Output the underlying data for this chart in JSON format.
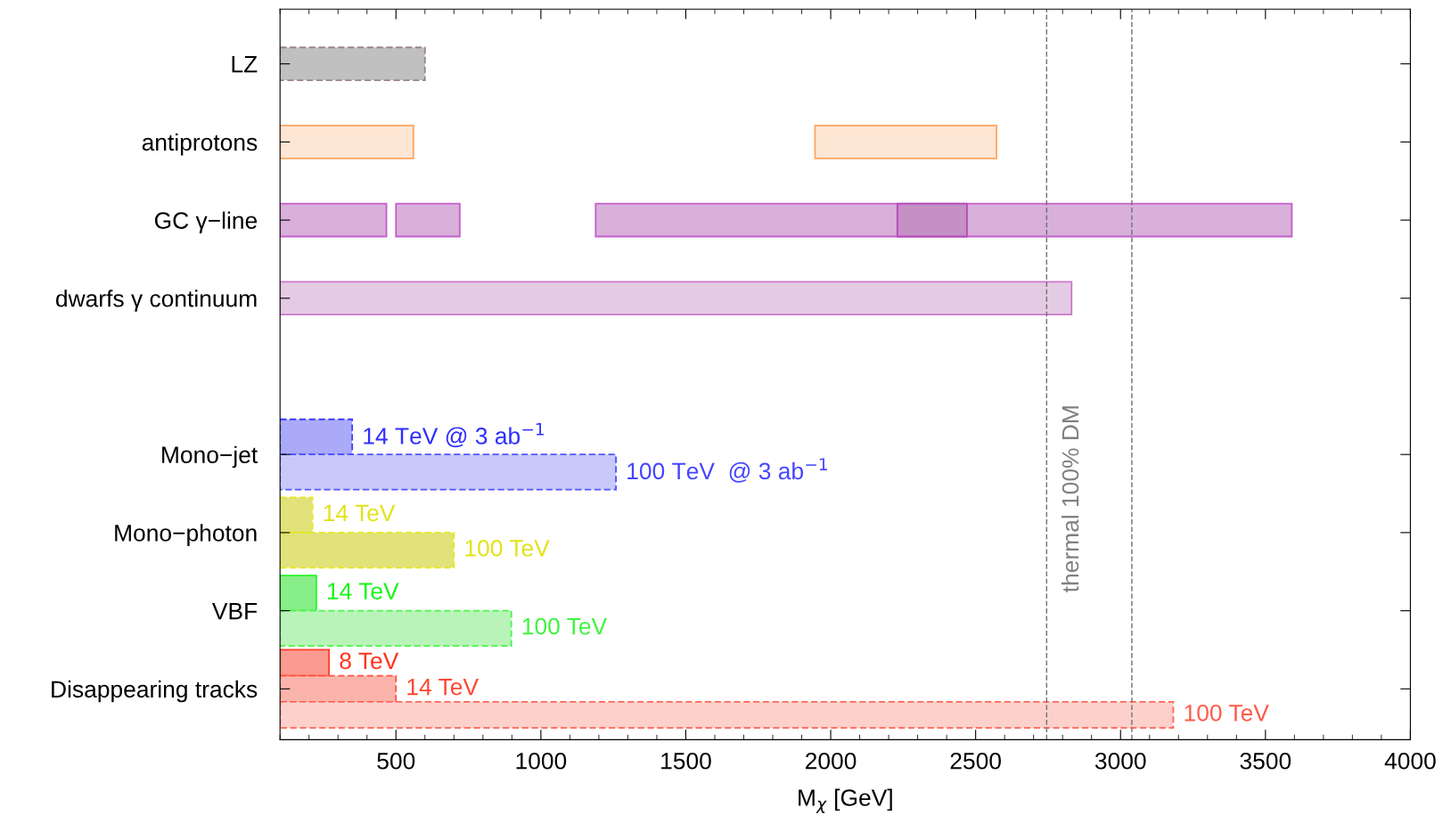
{
  "chart_data": {
    "type": "bar",
    "orientation": "horizontal",
    "xlabel": "M$_{χ}$ [GeV]",
    "categories": [
      "LZ",
      "antiprotons",
      "GC γ−line",
      "dwarfs γ continuum",
      null,
      "Mono−jet",
      "Mono−photon",
      "VBF",
      "Disappearing tracks"
    ],
    "xlim": [
      100,
      4000
    ],
    "xticks": [
      500,
      1000,
      1500,
      2000,
      2500,
      3000,
      3500,
      4000
    ],
    "series": [
      {
        "color": "#c0c0c0",
        "line_style": "dashed",
        "values": [
          500,
          null,
          null,
          null,
          null,
          null,
          null,
          null,
          null
        ],
        "base": [
          100,
          null,
          null,
          null,
          null,
          null,
          null,
          null,
          null
        ]
      },
      {
        "color": "#fde6d4",
        "line_style": "solid",
        "values": [
          null,
          460,
          null,
          null,
          null,
          null,
          null,
          null,
          null
        ],
        "base": [
          null,
          100,
          null,
          null,
          null,
          null,
          null,
          null,
          null
        ]
      },
      {
        "color": "#fde6d4",
        "line_style": "solid",
        "values": [
          null,
          626,
          null,
          null,
          null,
          null,
          null,
          null,
          null
        ],
        "base": [
          null,
          1946,
          null,
          null,
          null,
          null,
          null,
          null,
          null
        ]
      },
      {
        "color": "#d8b0da",
        "line_style": "solid",
        "values": [
          null,
          null,
          367,
          null,
          null,
          null,
          null,
          null,
          null
        ],
        "base": [
          null,
          null,
          100,
          null,
          null,
          null,
          null,
          null,
          null
        ]
      },
      {
        "color": "#d8b0da",
        "line_style": "solid",
        "values": [
          null,
          null,
          220,
          null,
          null,
          null,
          null,
          null,
          null
        ],
        "base": [
          null,
          null,
          500,
          null,
          null,
          null,
          null,
          null,
          null
        ]
      },
      {
        "color": "#d8b0da",
        "line_style": "solid",
        "values": [
          null,
          null,
          2402,
          null,
          null,
          null,
          null,
          null,
          null
        ],
        "base": [
          null,
          null,
          1189,
          null,
          null,
          null,
          null,
          null,
          null
        ]
      },
      {
        "color": "#c490c6",
        "line_style": "solid",
        "values": [
          null,
          null,
          240,
          null,
          null,
          null,
          null,
          null,
          null
        ],
        "base": [
          null,
          null,
          2230,
          null,
          null,
          null,
          null,
          null,
          null
        ]
      },
      {
        "color": "#e4cbe4",
        "line_style": "solid",
        "values": [
          null,
          null,
          null,
          2731,
          null,
          null,
          null,
          null,
          null
        ],
        "base": [
          null,
          null,
          null,
          100,
          null,
          null,
          null,
          null,
          null
        ]
      },
      {
        "name": "14 TeV @ 3 ab$^{−1}$",
        "color": "#aaaaf8",
        "line_style": "dashed",
        "values": [
          null,
          null,
          null,
          null,
          null,
          249,
          null,
          null,
          null
        ],
        "base": [
          null,
          null,
          null,
          null,
          null,
          100,
          null,
          null,
          null
        ]
      },
      {
        "name": "100 TeV  @ 3 ab$^{−1}$",
        "color": "#c8c8fa",
        "line_style": "dashed",
        "values": [
          null,
          null,
          null,
          null,
          null,
          1159,
          null,
          null,
          null
        ],
        "base": [
          null,
          null,
          null,
          null,
          null,
          100,
          null,
          null,
          null
        ]
      },
      {
        "name": "14 TeV",
        "color": "#e2e27a",
        "line_style": "dashed",
        "values": [
          null,
          null,
          null,
          null,
          null,
          null,
          112,
          null,
          null
        ],
        "base": [
          null,
          null,
          null,
          null,
          null,
          null,
          100,
          null,
          null
        ]
      },
      {
        "name": "100 TeV",
        "color": "#e2e27a",
        "line_style": "dashed",
        "values": [
          null,
          null,
          null,
          null,
          null,
          null,
          600,
          null,
          null
        ],
        "base": [
          null,
          null,
          null,
          null,
          null,
          null,
          100,
          null,
          null
        ]
      },
      {
        "name": "14 TeV",
        "color": "#88ee88",
        "line_style": "solid",
        "values": [
          null,
          null,
          null,
          null,
          null,
          null,
          null,
          125,
          null
        ],
        "base": [
          null,
          null,
          null,
          null,
          null,
          null,
          null,
          100,
          null
        ]
      },
      {
        "name": "100 TeV",
        "color": "#b8f4b8",
        "line_style": "dashed",
        "values": [
          null,
          null,
          null,
          null,
          null,
          null,
          null,
          798,
          null
        ],
        "base": [
          null,
          null,
          null,
          null,
          null,
          null,
          null,
          100,
          null
        ]
      },
      {
        "name": "8 TeV",
        "color": "#fa9a90",
        "line_style": "solid",
        "values": [
          null,
          null,
          null,
          null,
          null,
          null,
          null,
          null,
          169
        ],
        "base": [
          null,
          null,
          null,
          null,
          null,
          null,
          null,
          null,
          100
        ]
      },
      {
        "name": "14 TeV",
        "color": "#fbb4ac",
        "line_style": "dashed",
        "values": [
          null,
          null,
          null,
          null,
          null,
          null,
          null,
          null,
          400
        ],
        "base": [
          null,
          null,
          null,
          null,
          null,
          null,
          null,
          null,
          100
        ]
      },
      {
        "name": "100 TeV",
        "color": "#fdd0cc",
        "line_style": "dashed",
        "values": [
          null,
          null,
          null,
          null,
          null,
          null,
          null,
          null,
          3082
        ],
        "base": [
          null,
          null,
          null,
          null,
          null,
          null,
          null,
          null,
          100
        ]
      }
    ],
    "ref_lines": [
      {
        "axis": "x",
        "value": 2745,
        "label": "thermal 100% DM",
        "color": "#707070",
        "line_style": "dashed"
      },
      {
        "axis": "x",
        "value": 3039,
        "color": "#707070",
        "line_style": "dashed"
      }
    ],
    "grid": false,
    "legend": false
  }
}
